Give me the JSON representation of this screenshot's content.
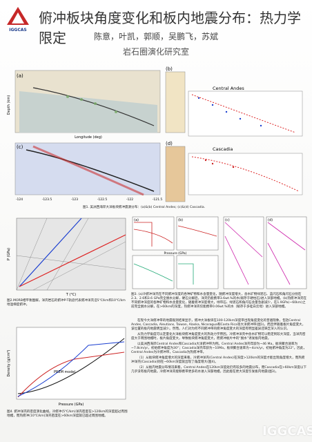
{
  "header": {
    "logo_text": "IGGCAS",
    "title": "俯冲板块角度变化和板内地震分布：热力学限定",
    "authors": "陈意，叶凯，郭顺，吴鹏飞，苏斌",
    "affiliation": "岩石圈演化研究室"
  },
  "figure1": {
    "panels": [
      "(a)",
      "(b)",
      "(c)",
      "(d)"
    ],
    "label_b": "Central Andes",
    "label_d": "Cascadia",
    "y_axis": "Depth (km)",
    "x_axis": "Longitude (deg)",
    "c_ticks": [
      "-124",
      "-123.5",
      "-123",
      "-122.5",
      "-122",
      "-121.5"
    ],
    "caption": "图1. 美洲西海岸大洋板块俯冲震源分布：(a)&(b) Central Andes; (c)&(d) Cascadia."
  },
  "figure2": {
    "caption": "图2.MORB相平衡图解。洋壳岩石的俯冲P-T轨迹代表俯冲洋壳沿5℃/km和10℃/km地温梯度俯冲。",
    "y_axis": "P (GPa)",
    "x_axis": "T (°C)"
  },
  "figure3": {
    "panels": [
      "(a)",
      "(b)",
      "(c)",
      "(d)"
    ],
    "x_axis": "Pressure (GPa)",
    "caption": "图3. (a)冷俯冲洋壳在不同俯冲深度的各种矿物和水含量变化，随俯冲深度增大，含水矿物绿泥石、蓝闪石和角闪石分别在2.3、2.6和3.6 GPa完全脱水分解，硬石分解后，洋壳仍能携带3.6wt.%的水(赋存于硬柱石)进入深部地幔。(b)热俯冲洋壳在不同俯冲深度的各种矿物和水含量变化，随着俯冲深度增大，绿帘石、绿泥石和角闪石含量急剧减少，在1.9GPa(~60km)之前完全脱水分解，在>60km的深度，热俯冲洋壳仅能携带0.06wt.%的水（赋存于多硅白云母）进入深部地幔。"
  },
  "figure4": {
    "label": "PREM model",
    "y_axis": "Density (g/cm³)",
    "x_axis": "Pressure (GPa)",
    "caption": "图4. 俯冲洋壳的密度演化曲线。冷俯冲(5℃/km)洋壳密度在>120km的深度超过周围地幔，而热俯冲(10℃/km)洋壳密度在>60km深度就已超过周围地幔。"
  },
  "body": [
    "在现今大洋俯冲带的地震观测结果显示，俯冲大洋板块在100-120km深度带出现角度变化的普遍现象，包括Central Andes, Cascadia, Aleutians, Taiwan, Alaska, Nicaragua和Costa Rica等大洋俯冲带(图1)。而且伴随着板片角度变大，该位置的板内地震明显减少。然而，人们对为何不同俯冲带的俯冲角度变大的深度有明显差异还缺乏深入的认识。",
    "从热力学角度可以定量化大洋板块俯冲角度变大的热动力学原因。冷俯冲洋壳中含水矿物可以稳定到较大深度，当洋壳密度大于周围地幔时，板片角度变大，导致板块俯冲角度变大，而俯冲板片中的“脱水”诱发板内地震。",
    "以美洲西海岸Central Andes和Cascadia大洋俯冲带为例。Central Andes洋壳年龄为~46 Ma，板块聚合速率为~7.8cm/yr，初始俯冲角度为30°；Cascadia洋壳年龄为~10Ma，板块聚合速率为~4cm/yr，初始俯冲角度为22°。因此，Central Andes为冷俯冲带，Cascadia为热俯冲带。",
    "（1）从板块俯冲角度增大的深度来看，冷俯冲洋壳(Central Andes)在深度>120km的深度才能出现角度增大，而热俯冲洋壳(Cascadia)则在~60km深度就出现了角度增大(图4)。",
    "（2）从板内地震分布情况来看，Central Andes在120km深度处仍有较多的地震分布，而Cascadia在>60km深度以下几乎没有板内地震。冷俯冲洋壳能够携带更多的水进入深部地幔，因此能在更大深度引发板内地震(图3)。"
  ],
  "watermark": "IGGCAS"
}
